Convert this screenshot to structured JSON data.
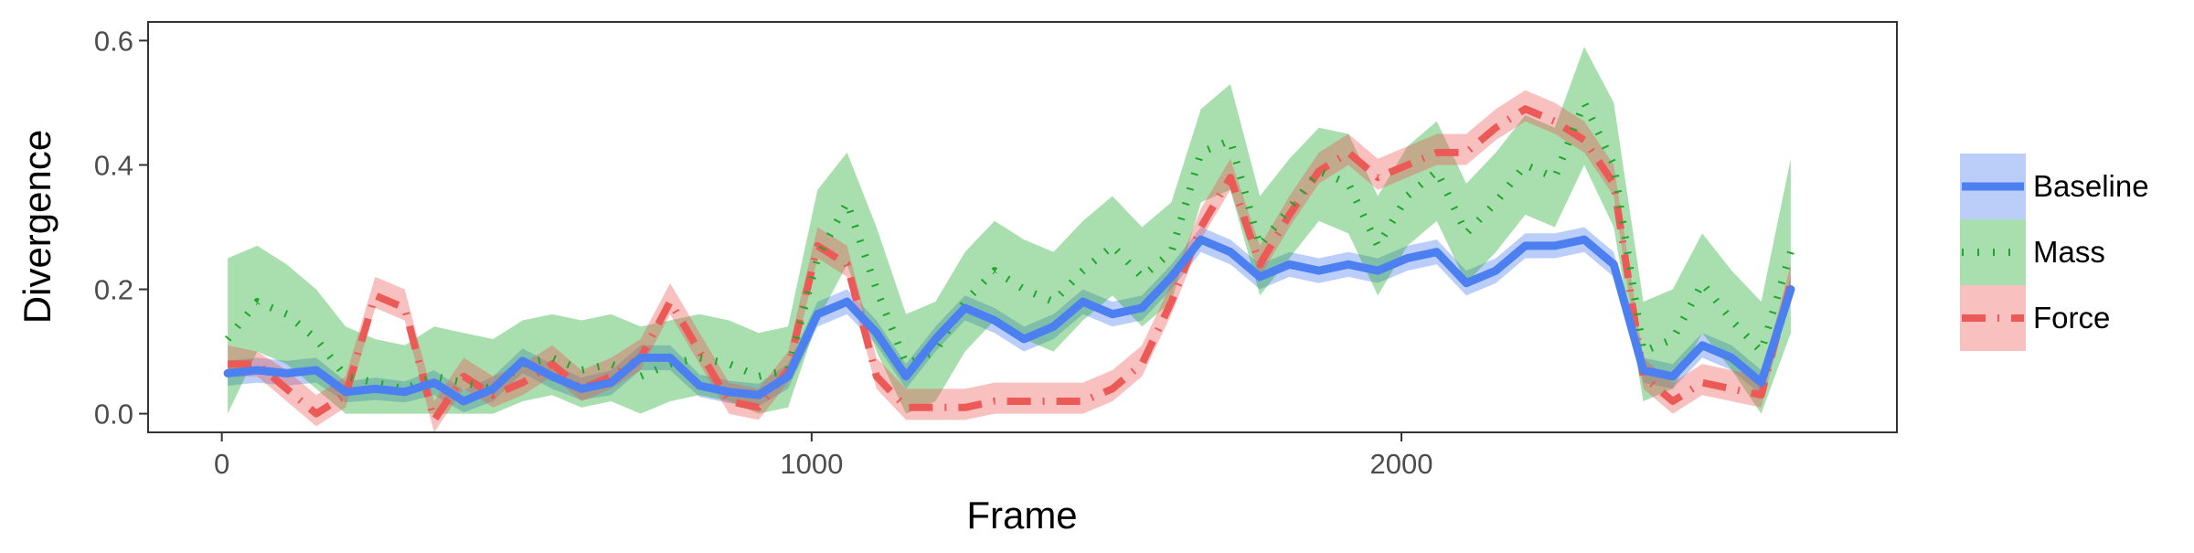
{
  "chart_data": {
    "type": "line",
    "title": "",
    "xlabel": "Frame",
    "ylabel": "Divergence",
    "xlim": [
      -125,
      2840
    ],
    "ylim": [
      -0.03,
      0.63
    ],
    "x_ticks": [
      0,
      1000,
      2000
    ],
    "x_tick_labels": [
      "0",
      "1000",
      "2000"
    ],
    "y_ticks": [
      0.0,
      0.2,
      0.4,
      0.6
    ],
    "y_tick_labels": [
      "0.0",
      "0.2",
      "0.4",
      "0.6"
    ],
    "grid": false,
    "legend_position": "right",
    "x": [
      10,
      60,
      110,
      160,
      210,
      260,
      310,
      360,
      410,
      460,
      510,
      560,
      610,
      660,
      710,
      760,
      810,
      860,
      910,
      960,
      1010,
      1060,
      1110,
      1160,
      1210,
      1260,
      1310,
      1360,
      1410,
      1460,
      1510,
      1560,
      1610,
      1660,
      1710,
      1760,
      1810,
      1860,
      1910,
      1960,
      2010,
      2060,
      2110,
      2160,
      2210,
      2260,
      2310,
      2360,
      2410,
      2460,
      2510,
      2560,
      2610,
      2660
    ],
    "series": [
      {
        "name": "Baseline",
        "color": "#4C7FF0",
        "dash": "solid",
        "values": [
          0.065,
          0.07,
          0.065,
          0.07,
          0.035,
          0.04,
          0.035,
          0.05,
          0.02,
          0.04,
          0.085,
          0.06,
          0.04,
          0.05,
          0.09,
          0.09,
          0.045,
          0.035,
          0.03,
          0.06,
          0.16,
          0.18,
          0.13,
          0.06,
          0.12,
          0.17,
          0.15,
          0.12,
          0.14,
          0.18,
          0.16,
          0.17,
          0.22,
          0.28,
          0.26,
          0.22,
          0.24,
          0.23,
          0.24,
          0.23,
          0.25,
          0.26,
          0.21,
          0.23,
          0.27,
          0.27,
          0.28,
          0.24,
          0.07,
          0.06,
          0.11,
          0.09,
          0.05,
          0.2
        ],
        "lower": [
          0.045,
          0.05,
          0.045,
          0.05,
          0.018,
          0.022,
          0.018,
          0.03,
          0.002,
          0.02,
          0.065,
          0.04,
          0.022,
          0.03,
          0.07,
          0.07,
          0.027,
          0.017,
          0.012,
          0.04,
          0.14,
          0.16,
          0.11,
          0.04,
          0.1,
          0.15,
          0.13,
          0.1,
          0.12,
          0.16,
          0.14,
          0.15,
          0.2,
          0.26,
          0.24,
          0.2,
          0.22,
          0.21,
          0.22,
          0.21,
          0.23,
          0.24,
          0.19,
          0.21,
          0.25,
          0.25,
          0.26,
          0.22,
          0.05,
          0.04,
          0.09,
          0.07,
          0.03,
          0.18
        ],
        "upper": [
          0.085,
          0.09,
          0.085,
          0.09,
          0.052,
          0.058,
          0.052,
          0.07,
          0.038,
          0.06,
          0.105,
          0.08,
          0.058,
          0.07,
          0.11,
          0.11,
          0.063,
          0.053,
          0.048,
          0.08,
          0.18,
          0.2,
          0.15,
          0.08,
          0.14,
          0.19,
          0.17,
          0.14,
          0.16,
          0.2,
          0.18,
          0.19,
          0.24,
          0.3,
          0.28,
          0.24,
          0.26,
          0.25,
          0.26,
          0.25,
          0.27,
          0.28,
          0.23,
          0.25,
          0.29,
          0.29,
          0.3,
          0.26,
          0.09,
          0.08,
          0.13,
          0.11,
          0.07,
          0.22
        ]
      },
      {
        "name": "Mass",
        "color": "#1EA82B",
        "dash": "dotted",
        "values": [
          0.12,
          0.18,
          0.16,
          0.12,
          0.06,
          0.05,
          0.04,
          0.06,
          0.05,
          0.04,
          0.08,
          0.09,
          0.07,
          0.08,
          0.06,
          0.08,
          0.09,
          0.08,
          0.06,
          0.07,
          0.25,
          0.34,
          0.2,
          0.08,
          0.1,
          0.18,
          0.23,
          0.2,
          0.18,
          0.23,
          0.27,
          0.22,
          0.26,
          0.42,
          0.44,
          0.27,
          0.33,
          0.39,
          0.37,
          0.27,
          0.35,
          0.39,
          0.29,
          0.34,
          0.4,
          0.38,
          0.5,
          0.4,
          0.1,
          0.12,
          0.21,
          0.15,
          0.1,
          0.26
        ],
        "lower": [
          0.0,
          0.1,
          0.08,
          0.04,
          0.0,
          0.0,
          0.0,
          0.0,
          0.0,
          0.0,
          0.02,
          0.03,
          0.01,
          0.02,
          0.0,
          0.02,
          0.03,
          0.02,
          0.0,
          0.01,
          0.15,
          0.24,
          0.1,
          0.0,
          0.02,
          0.1,
          0.15,
          0.12,
          0.1,
          0.15,
          0.19,
          0.14,
          0.18,
          0.34,
          0.36,
          0.19,
          0.25,
          0.31,
          0.29,
          0.19,
          0.27,
          0.31,
          0.21,
          0.26,
          0.32,
          0.3,
          0.4,
          0.3,
          0.02,
          0.04,
          0.13,
          0.07,
          0.0,
          0.13
        ],
        "upper": [
          0.25,
          0.27,
          0.24,
          0.2,
          0.14,
          0.12,
          0.11,
          0.14,
          0.13,
          0.12,
          0.15,
          0.16,
          0.15,
          0.16,
          0.14,
          0.15,
          0.16,
          0.15,
          0.13,
          0.14,
          0.36,
          0.42,
          0.3,
          0.16,
          0.18,
          0.26,
          0.31,
          0.28,
          0.26,
          0.31,
          0.35,
          0.3,
          0.34,
          0.49,
          0.53,
          0.35,
          0.41,
          0.46,
          0.45,
          0.35,
          0.43,
          0.47,
          0.37,
          0.42,
          0.48,
          0.46,
          0.59,
          0.5,
          0.18,
          0.2,
          0.29,
          0.23,
          0.18,
          0.41
        ]
      },
      {
        "name": "Force",
        "color": "#EC5A57",
        "dash": "dashdot",
        "values": [
          0.08,
          0.08,
          0.04,
          0.0,
          0.03,
          0.19,
          0.17,
          -0.01,
          0.06,
          0.03,
          0.05,
          0.08,
          0.04,
          0.06,
          0.09,
          0.18,
          0.1,
          0.02,
          0.01,
          0.07,
          0.27,
          0.24,
          0.06,
          0.01,
          0.01,
          0.01,
          0.02,
          0.02,
          0.02,
          0.02,
          0.04,
          0.08,
          0.18,
          0.3,
          0.38,
          0.24,
          0.32,
          0.39,
          0.42,
          0.38,
          0.4,
          0.42,
          0.42,
          0.46,
          0.49,
          0.47,
          0.44,
          0.37,
          0.06,
          0.02,
          0.05,
          0.04,
          0.03,
          0.21
        ],
        "lower": [
          0.06,
          0.06,
          0.02,
          -0.02,
          0.01,
          0.17,
          0.15,
          -0.03,
          0.04,
          0.01,
          0.03,
          0.06,
          0.02,
          0.04,
          0.07,
          0.16,
          0.08,
          0.0,
          -0.01,
          0.05,
          0.25,
          0.22,
          0.04,
          -0.01,
          -0.01,
          -0.01,
          0.0,
          0.0,
          0.0,
          0.0,
          0.02,
          0.06,
          0.16,
          0.28,
          0.36,
          0.22,
          0.3,
          0.37,
          0.4,
          0.36,
          0.38,
          0.4,
          0.4,
          0.44,
          0.47,
          0.45,
          0.42,
          0.35,
          0.04,
          0.0,
          0.03,
          0.02,
          0.01,
          0.19
        ],
        "upper": [
          0.11,
          0.1,
          0.07,
          0.03,
          0.06,
          0.22,
          0.2,
          0.02,
          0.09,
          0.06,
          0.08,
          0.11,
          0.07,
          0.09,
          0.12,
          0.21,
          0.13,
          0.05,
          0.04,
          0.1,
          0.3,
          0.27,
          0.09,
          0.04,
          0.04,
          0.04,
          0.05,
          0.05,
          0.05,
          0.05,
          0.07,
          0.11,
          0.21,
          0.33,
          0.41,
          0.27,
          0.35,
          0.42,
          0.45,
          0.41,
          0.43,
          0.45,
          0.45,
          0.49,
          0.52,
          0.5,
          0.47,
          0.4,
          0.09,
          0.05,
          0.08,
          0.07,
          0.06,
          0.24
        ]
      }
    ]
  }
}
